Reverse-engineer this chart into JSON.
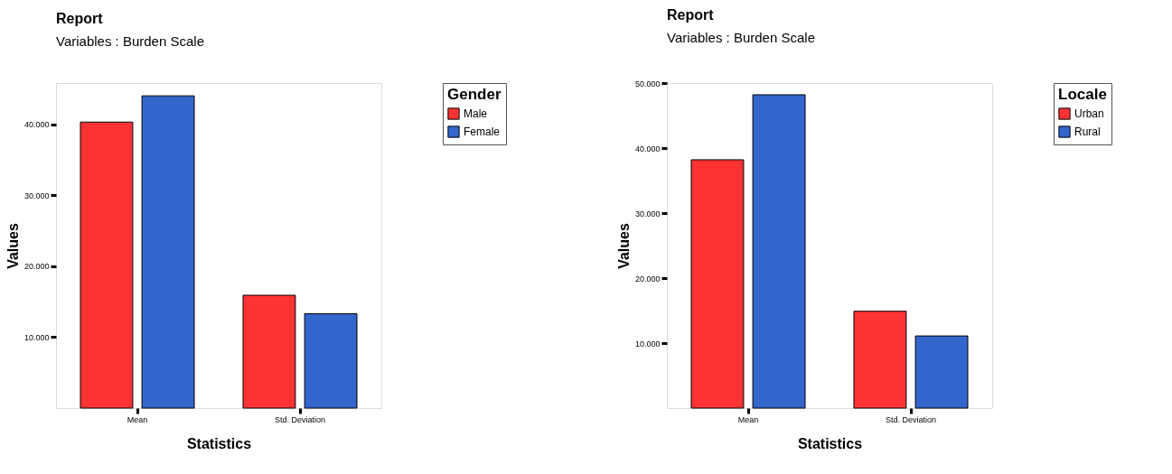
{
  "chart_data": [
    {
      "type": "bar",
      "title": "Report",
      "subtitle": "Variables : Burden Scale",
      "xlabel": "Statistics",
      "ylabel": "Values",
      "legend_title": "Gender",
      "legend": "top right",
      "grid": false,
      "categories": [
        "Mean",
        "Std. Deviation"
      ],
      "series": [
        {
          "name": "Male",
          "color": "#ff3333",
          "values": [
            40.3,
            15.9
          ]
        },
        {
          "name": "Female",
          "color": "#3366cc",
          "values": [
            44.0,
            13.3
          ]
        }
      ],
      "ylim": [
        0,
        45.8
      ],
      "yticks": [
        {
          "value": 10,
          "label": "10.000"
        },
        {
          "value": 20,
          "label": "20.000"
        },
        {
          "value": 30,
          "label": "30.000"
        },
        {
          "value": 40,
          "label": "40.000"
        }
      ]
    },
    {
      "type": "bar",
      "title": "Report",
      "subtitle": "Variables : Burden Scale",
      "xlabel": "Statistics",
      "ylabel": "Values",
      "legend_title": "Locale",
      "legend": "top right",
      "grid": false,
      "categories": [
        "Mean",
        "Std. Deviation"
      ],
      "series": [
        {
          "name": "Urban",
          "color": "#ff3333",
          "values": [
            38.2,
            14.9
          ]
        },
        {
          "name": "Rural",
          "color": "#3366cc",
          "values": [
            48.2,
            11.1
          ]
        }
      ],
      "ylim": [
        0,
        50
      ],
      "yticks": [
        {
          "value": 10,
          "label": "10.000"
        },
        {
          "value": 20,
          "label": "20.000"
        },
        {
          "value": 30,
          "label": "30.000"
        },
        {
          "value": 40,
          "label": "40.000"
        },
        {
          "value": 50,
          "label": "50.000"
        }
      ]
    }
  ]
}
